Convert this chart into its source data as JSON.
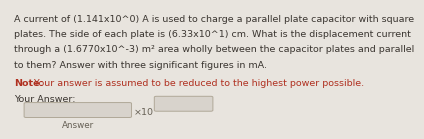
{
  "bg_color": "#e8e4de",
  "main_text_lines": [
    "A current of (1.141x10^0) A is used to charge a parallel plate capacitor with square",
    "plates. The side of each plate is (6.33x10^1) cm. What is the displacement current",
    "through a (1.6770x10^-3) m² area wholly between the capacitor plates and parallel",
    "to them? Answer with three significant figures in mA."
  ],
  "note_bold": "Note:",
  "note_text": " Your answer is assumed to be reduced to the highest power possible.",
  "your_answer_label": "Your Answer:",
  "x10_label": "×10",
  "answer_label": "Answer",
  "main_fontsize": 6.8,
  "note_fontsize": 6.8,
  "label_fontsize": 6.8,
  "text_color": "#3a3530",
  "note_color": "#b03020",
  "box_edge_color": "#b0a898",
  "box_face_color": "#d8d3cc"
}
